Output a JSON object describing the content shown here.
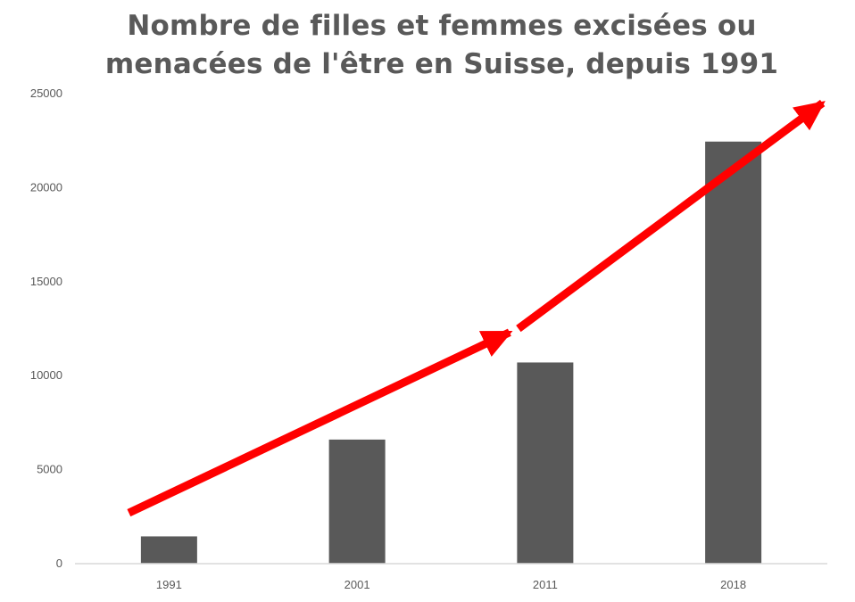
{
  "chart_data": {
    "type": "bar",
    "title": "Nombre de filles et femmes excisées ou\nmenacées de l'être en Suisse, depuis 1991",
    "xlabel": "",
    "ylabel": "",
    "categories": [
      "1991",
      "2001",
      "2011",
      "2018"
    ],
    "values": [
      1450,
      6600,
      10700,
      22450
    ],
    "ylim": [
      0,
      25000
    ],
    "yticks": [
      0,
      5000,
      10000,
      15000,
      20000,
      25000
    ],
    "grid": false,
    "legend": "none",
    "annotations": [
      {
        "type": "arrow",
        "from": {
          "x": "1991",
          "y": 2700
        },
        "to": {
          "x": "2011",
          "y": 12300
        }
      },
      {
        "type": "arrow",
        "from": {
          "x": "2011",
          "y": 12500
        },
        "to": {
          "x": "2018",
          "y": 24500
        }
      }
    ],
    "colors": {
      "bar": "#595959",
      "arrow": "#ff0000",
      "axis": "#d9d9d9",
      "text": "#595959"
    }
  }
}
